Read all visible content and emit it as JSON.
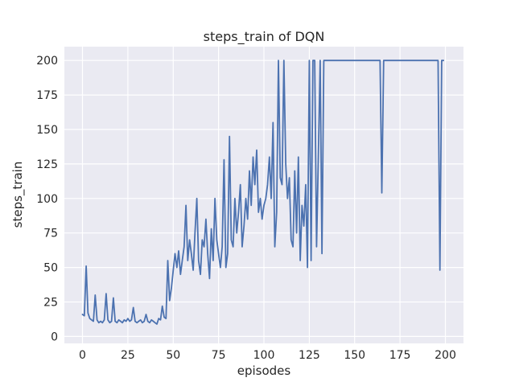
{
  "figure": {
    "title": "steps_train of DQN",
    "xlabel": "episodes",
    "ylabel": "steps_train"
  },
  "chart_data": {
    "type": "line",
    "title": "steps_train of DQN",
    "xlabel": "episodes",
    "ylabel": "steps_train",
    "x_ticks": [
      0,
      25,
      50,
      75,
      100,
      125,
      150,
      175,
      200
    ],
    "y_ticks": [
      0,
      25,
      50,
      75,
      100,
      125,
      150,
      175,
      200
    ],
    "xlim": [
      -10,
      210
    ],
    "ylim": [
      -5,
      210
    ],
    "grid": true,
    "legend": "none",
    "plot_bg": "#eaeaf2",
    "grid_color": "#ffffff",
    "line_color": "#4c72b0",
    "x_note": "x value = episode index, 0 through 199",
    "series": [
      {
        "name": "steps_train",
        "values": [
          16,
          15,
          51,
          17,
          13,
          12,
          11,
          30,
          12,
          10,
          11,
          10,
          12,
          31,
          12,
          10,
          11,
          28,
          11,
          10,
          12,
          11,
          10,
          12,
          11,
          13,
          11,
          12,
          21,
          11,
          10,
          11,
          12,
          10,
          11,
          16,
          11,
          10,
          12,
          11,
          10,
          9,
          13,
          12,
          22,
          14,
          13,
          55,
          26,
          35,
          48,
          60,
          50,
          62,
          45,
          55,
          65,
          95,
          55,
          70,
          60,
          48,
          75,
          100,
          55,
          45,
          70,
          65,
          85,
          60,
          42,
          78,
          55,
          100,
          70,
          60,
          50,
          65,
          128,
          50,
          60,
          145,
          70,
          65,
          100,
          75,
          90,
          110,
          65,
          80,
          100,
          85,
          120,
          95,
          130,
          110,
          135,
          90,
          100,
          85,
          95,
          100,
          110,
          130,
          100,
          155,
          65,
          90,
          200,
          115,
          110,
          200,
          125,
          100,
          115,
          70,
          65,
          120,
          75,
          130,
          55,
          95,
          80,
          110,
          50,
          200,
          55,
          200,
          200,
          65,
          130,
          200,
          60,
          200,
          200,
          200,
          200,
          200,
          200,
          200,
          200,
          200,
          200,
          200,
          200,
          200,
          200,
          200,
          200,
          200,
          200,
          200,
          200,
          200,
          200,
          200,
          200,
          200,
          200,
          200,
          200,
          200,
          200,
          200,
          200,
          104,
          200,
          200,
          200,
          200,
          200,
          200,
          200,
          200,
          200,
          200,
          200,
          200,
          200,
          200,
          200,
          200,
          200,
          200,
          200,
          200,
          200,
          200,
          200,
          200,
          200,
          200,
          200,
          200,
          200,
          200,
          200,
          48,
          200,
          200
        ]
      }
    ]
  }
}
